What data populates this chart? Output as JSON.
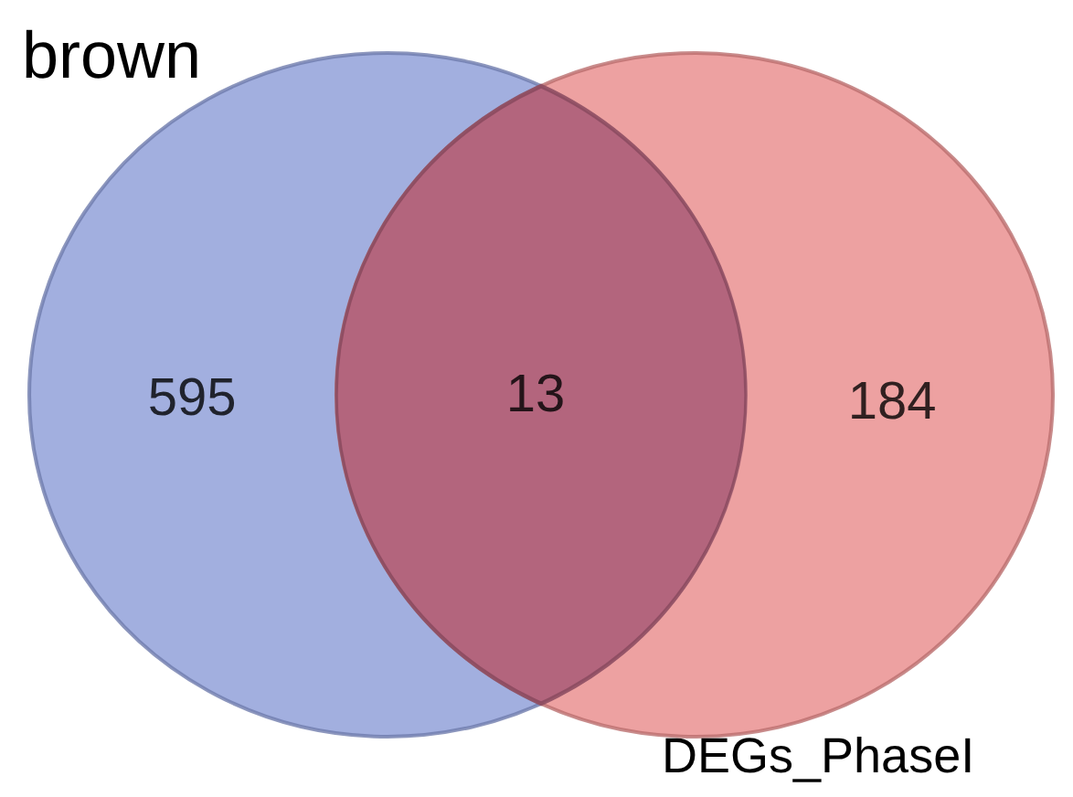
{
  "chart_data": {
    "type": "other",
    "categories": [
      null,
      null,
      null
    ],
    "values": [
      595,
      13,
      184
    ],
    "colors": [
      "#8b9bd7",
      "#a95a76",
      "#e88a8a"
    ],
    "data_labels": true,
    "annotations": [
      "brown",
      "DEGs_PhaseI"
    ]
  }
}
